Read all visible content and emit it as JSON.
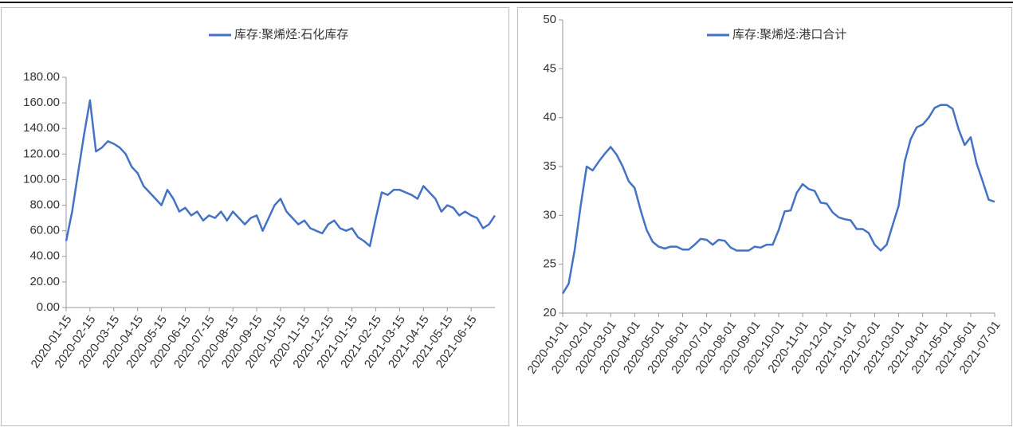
{
  "chart_data": [
    {
      "type": "line",
      "categories": [
        "2020-01-15",
        null,
        null,
        null,
        "2020-02-15",
        null,
        null,
        null,
        "2020-03-15",
        null,
        null,
        null,
        "2020-04-15",
        null,
        null,
        null,
        "2020-05-15",
        null,
        null,
        null,
        "2020-06-15",
        null,
        null,
        null,
        "2020-07-15",
        null,
        null,
        null,
        "2020-08-15",
        null,
        null,
        null,
        "2020-09-15",
        null,
        null,
        null,
        "2020-10-15",
        null,
        null,
        null,
        "2020-11-15",
        null,
        null,
        null,
        "2020-12-15",
        null,
        null,
        null,
        "2021-01-15",
        null,
        null,
        null,
        "2021-02-15",
        null,
        null,
        null,
        "2021-03-15",
        null,
        null,
        null,
        "2021-04-15",
        null,
        null,
        null,
        "2021-05-15",
        null,
        null,
        null,
        "2021-06-15",
        null,
        null,
        null,
        null
      ],
      "series": [
        {
          "name": "库存:聚烯烃:石化库存",
          "color": "#4472c4",
          "values": [
            52,
            75,
            105,
            135,
            162,
            122,
            125,
            130,
            128,
            125,
            120,
            110,
            105,
            95,
            90,
            85,
            80,
            92,
            85,
            75,
            78,
            72,
            75,
            68,
            72,
            70,
            75,
            68,
            75,
            70,
            65,
            70,
            72,
            60,
            70,
            80,
            85,
            75,
            70,
            65,
            68,
            62,
            60,
            58,
            65,
            68,
            62,
            60,
            62,
            55,
            52,
            48,
            70,
            90,
            88,
            92,
            92,
            90,
            88,
            85,
            95,
            90,
            85,
            75,
            80,
            78,
            72,
            75,
            72,
            70,
            62,
            65,
            72
          ]
        }
      ],
      "ylim": [
        0,
        180
      ],
      "yticks": [
        {
          "value": 0,
          "label": "0.00"
        },
        {
          "value": 20,
          "label": "20.00"
        },
        {
          "value": 40,
          "label": "40.00"
        },
        {
          "value": 60,
          "label": "60.00"
        },
        {
          "value": 80,
          "label": "80.00"
        },
        {
          "value": 100,
          "label": "100.00"
        },
        {
          "value": 120,
          "label": "120.00"
        },
        {
          "value": 140,
          "label": "140.00"
        },
        {
          "value": 160,
          "label": "160.00"
        },
        {
          "value": 180,
          "label": "180.00"
        }
      ],
      "legend": "top"
    },
    {
      "type": "line",
      "categories": [
        "2020-01-01",
        null,
        null,
        null,
        "2020-02-01",
        null,
        null,
        null,
        "2020-03-01",
        null,
        null,
        null,
        "2020-04-01",
        null,
        null,
        null,
        "2020-05-01",
        null,
        null,
        null,
        "2020-06-01",
        null,
        null,
        null,
        "2020-07-01",
        null,
        null,
        null,
        "2020-08-01",
        null,
        null,
        null,
        "2020-09-01",
        null,
        null,
        null,
        "2020-10-01",
        null,
        null,
        null,
        "2020-11-01",
        null,
        null,
        null,
        "2020-12-01",
        null,
        null,
        null,
        "2021-01-01",
        null,
        null,
        null,
        "2021-02-01",
        null,
        null,
        null,
        "2021-03-01",
        null,
        null,
        null,
        "2021-04-01",
        null,
        null,
        null,
        "2021-05-01",
        null,
        null,
        null,
        "2021-06-01",
        null,
        null,
        null,
        "2021-07-01"
      ],
      "series": [
        {
          "name": "库存:聚烯烃:港口合计",
          "color": "#4472c4",
          "values": [
            22,
            23,
            26.5,
            31,
            35,
            34.6,
            35.5,
            36.3,
            37,
            36.2,
            35,
            33.5,
            32.8,
            30.5,
            28.5,
            27.3,
            26.8,
            26.6,
            26.8,
            26.8,
            26.5,
            26.5,
            27,
            27.6,
            27.5,
            27,
            27.5,
            27.4,
            26.7,
            26.4,
            26.4,
            26.4,
            26.8,
            26.7,
            27,
            27,
            28.5,
            30.4,
            30.5,
            32.3,
            33.2,
            32.7,
            32.5,
            31.3,
            31.2,
            30.3,
            29.8,
            29.6,
            29.5,
            28.6,
            28.6,
            28.2,
            27,
            26.4,
            27,
            29,
            31,
            35.5,
            37.8,
            39,
            39.3,
            40,
            41,
            41.3,
            41.3,
            40.9,
            38.8,
            37.2,
            38,
            35.3,
            33.5,
            31.6,
            31.4
          ]
        }
      ],
      "ylim": [
        20,
        50
      ],
      "yticks": [
        20,
        25,
        30,
        35,
        40,
        45,
        50
      ],
      "legend": "top"
    }
  ]
}
